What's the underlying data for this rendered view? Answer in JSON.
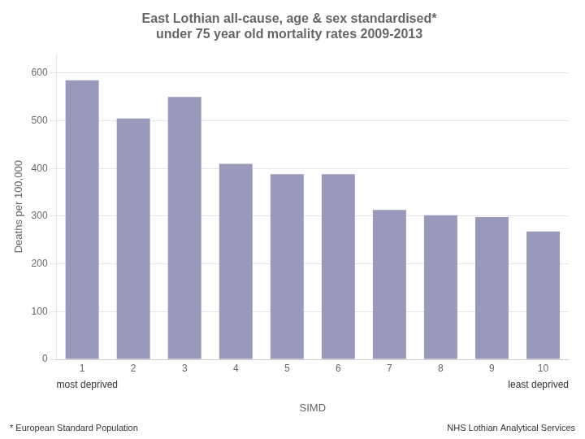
{
  "chart_data": {
    "type": "bar",
    "title": "East Lothian all-cause, age & sex standardised*\nunder 75 year old mortality rates 2009-2013",
    "categories": [
      1,
      2,
      3,
      4,
      5,
      6,
      7,
      8,
      9,
      10
    ],
    "values": [
      585,
      505,
      550,
      410,
      388,
      388,
      313,
      302,
      298,
      268
    ],
    "color": "#9999bb",
    "ylabel": "Deaths per 100,000",
    "xlabel": "SIMD",
    "ylim": [
      0,
      640
    ],
    "yticks": [
      0,
      100,
      200,
      300,
      400,
      500,
      600
    ],
    "grid": true,
    "annotations": [
      "most deprived",
      "least deprived"
    ],
    "footnotes": [
      "* European Standard Population",
      "NHS Lothian Analytical Services"
    ]
  }
}
